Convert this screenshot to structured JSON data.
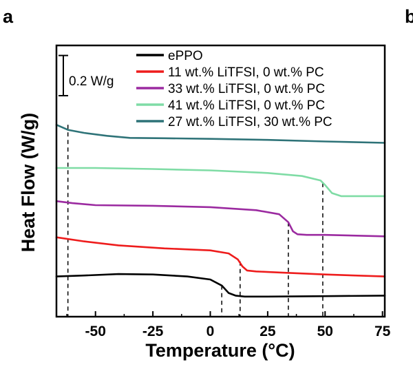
{
  "panels": {
    "left": "a",
    "right": "b"
  },
  "chart_data": {
    "type": "line",
    "xlabel": "Temperature (°C)",
    "ylabel": "Heat Flow (W/g)",
    "xlim": [
      -67,
      76
    ],
    "ylim": [
      -0.1,
      1.25
    ],
    "xticks": [
      -50,
      -25,
      0,
      25,
      50,
      75
    ],
    "xtick_labels": [
      "-50",
      "-25",
      "0",
      "25",
      "50",
      "75"
    ],
    "y_tick_labels": false,
    "scale_bar": {
      "label": "0.2 W/g",
      "value": 0.2
    },
    "legend_placement": "top-right",
    "series": [
      {
        "name": "ePPO",
        "color": "#000000",
        "x": [
          -67,
          -55,
          -40,
          -25,
          -10,
          0,
          5,
          8,
          11,
          15,
          25,
          50,
          76
        ],
        "y": [
          0.1,
          0.105,
          0.112,
          0.11,
          0.1,
          0.085,
          0.055,
          0.018,
          0.005,
          0.0,
          0.0,
          0.002,
          0.005
        ]
      },
      {
        "name": "11 wt.% LiTFSI, 0 wt.% PC",
        "color": "#ee1c1c",
        "x": [
          -67,
          -55,
          -40,
          -20,
          0,
          8,
          12,
          14,
          16,
          20,
          30,
          50,
          76
        ],
        "y": [
          0.295,
          0.275,
          0.255,
          0.24,
          0.23,
          0.215,
          0.185,
          0.15,
          0.13,
          0.125,
          0.12,
          0.11,
          0.1
        ]
      },
      {
        "name": "33 wt.% LiTFSI, 0 wt.% PC",
        "color": "#9b2aa0",
        "x": [
          -67,
          -60,
          -50,
          -25,
          0,
          20,
          30,
          34,
          36,
          38,
          42,
          50,
          76
        ],
        "y": [
          0.475,
          0.465,
          0.455,
          0.452,
          0.445,
          0.43,
          0.41,
          0.37,
          0.325,
          0.31,
          0.307,
          0.307,
          0.3
        ]
      },
      {
        "name": "41 wt.% LiTFSI, 0 wt.% PC",
        "color": "#7fdca5",
        "x": [
          -67,
          -50,
          -25,
          0,
          25,
          40,
          48,
          50,
          53,
          57,
          62,
          76
        ],
        "y": [
          0.64,
          0.64,
          0.635,
          0.628,
          0.615,
          0.6,
          0.578,
          0.555,
          0.515,
          0.5,
          0.5,
          0.5
        ]
      },
      {
        "name": "27 wt.% LiTFSI, 30 wt.% PC",
        "color": "#2e7378",
        "x": [
          -67,
          -62,
          -55,
          -45,
          -35,
          -20,
          0,
          25,
          50,
          76
        ],
        "y": [
          0.855,
          0.83,
          0.815,
          0.8,
          0.79,
          0.788,
          0.785,
          0.78,
          0.772,
          0.765
        ]
      }
    ],
    "dashed_markers": [
      {
        "x": -62,
        "y_top": 0.855
      },
      {
        "x": 5,
        "y_top": 0.055
      },
      {
        "x": 13,
        "y_top": 0.175
      },
      {
        "x": 34,
        "y_top": 0.37
      },
      {
        "x": 49,
        "y_top": 0.565
      }
    ]
  }
}
